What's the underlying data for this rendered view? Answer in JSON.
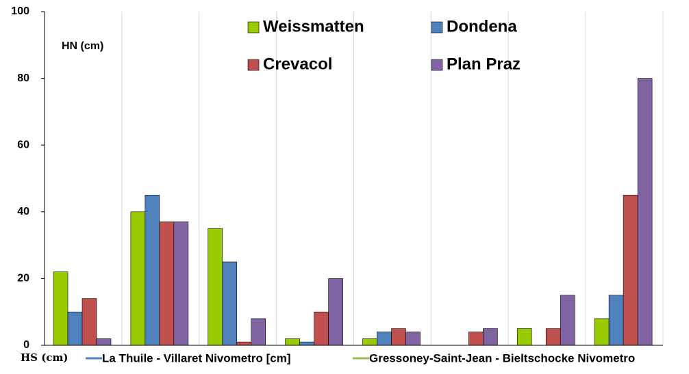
{
  "chart_data": {
    "type": "bar",
    "y_label": "HN (cm)",
    "x_label": "HS (cm)",
    "categories": [
      null,
      null,
      null,
      null,
      null,
      null,
      null,
      null
    ],
    "series": [
      {
        "name": "Weissmatten",
        "color": "#99cc00",
        "values": [
          22,
          40,
          35,
          2,
          2,
          0,
          5,
          8
        ]
      },
      {
        "name": "Dondena",
        "color": "#4f81bd",
        "values": [
          10,
          45,
          25,
          1,
          4,
          0,
          0,
          15
        ]
      },
      {
        "name": "Crevacol",
        "color": "#c0504d",
        "values": [
          14,
          37,
          1,
          10,
          5,
          4,
          5,
          45
        ]
      },
      {
        "name": "Plan Praz",
        "color": "#8064a2",
        "values": [
          2,
          37,
          8,
          20,
          4,
          5,
          15,
          80
        ]
      }
    ],
    "line_legend": [
      {
        "name": "La Thuile - Villaret Nivometro [cm]",
        "color": "#4f81bd"
      },
      {
        "name": "Gressoney-Saint-Jean - Bieltschocke Nivometro",
        "color": "#9bbb59"
      }
    ],
    "ylim": [
      0,
      100
    ],
    "yticks": [
      0,
      20,
      40,
      60,
      80,
      100
    ],
    "grid": "vertical"
  }
}
